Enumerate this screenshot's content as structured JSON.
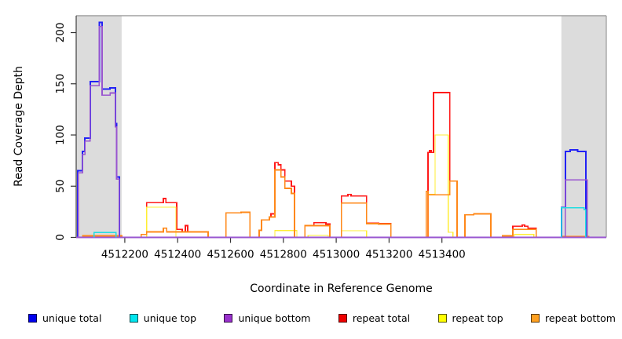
{
  "chart_data": {
    "type": "line",
    "subtype": "step-coverage",
    "title": "",
    "xlabel": "Coordinate in Reference Genome",
    "ylabel": "Read Coverage Depth",
    "x_range": [
      4512016,
      4514022
    ],
    "y_range": [
      0,
      216.5
    ],
    "x_ticks": [
      4512200,
      4512400,
      4512600,
      4512800,
      4513000,
      4513200,
      4513400
    ],
    "y_ticks": [
      0,
      50,
      100,
      150,
      200
    ],
    "grid": false,
    "legend_position": "bottom",
    "shaded_regions": [
      {
        "x0": 4512016,
        "x1": 4512188,
        "color": "#dcdcdc"
      },
      {
        "x0": 4513852,
        "x1": 4514022,
        "color": "#dcdcdc"
      }
    ],
    "legend": [
      {
        "label": "unique total",
        "color": "#0000ee"
      },
      {
        "label": "unique top",
        "color": "#00e5ee"
      },
      {
        "label": "unique bottom",
        "color": "#9932cc"
      },
      {
        "label": "repeat total",
        "color": "#ee0000"
      },
      {
        "label": "repeat top",
        "color": "#ffff00"
      },
      {
        "label": "repeat bottom",
        "color": "#ffa020"
      }
    ],
    "series": [
      {
        "name": "repeat_total",
        "label": "repeat total",
        "color": "#ff1a1a",
        "width": 1.7,
        "segments": [
          [
            [
              4512262,
              3
            ],
            [
              4512283,
              34
            ],
            [
              4512346,
              38
            ],
            [
              4512355,
              34
            ],
            [
              4512396,
              8
            ],
            [
              4512417,
              5.5
            ],
            [
              4512429,
              11.5
            ],
            [
              4512438,
              5.5
            ],
            [
              4512515,
              0
            ]
          ],
          [
            [
              4512583,
              24
            ],
            [
              4512640,
              24.5
            ],
            [
              4512673,
              0
            ]
          ],
          [
            [
              4512708,
              7
            ],
            [
              4512717,
              17
            ],
            [
              4512747,
              20
            ],
            [
              4512753,
              23
            ],
            [
              4512768,
              73
            ],
            [
              4512780,
              71
            ],
            [
              4512791,
              66
            ],
            [
              4512806,
              55
            ],
            [
              4512830,
              50
            ],
            [
              4512842,
              0
            ]
          ],
          [
            [
              4512881,
              11.5
            ],
            [
              4512916,
              14.5
            ],
            [
              4512961,
              13
            ],
            [
              4512976,
              0
            ]
          ],
          [
            [
              4513020,
              40.5
            ],
            [
              4513044,
              42
            ],
            [
              4513056,
              40.5
            ],
            [
              4513115,
              14
            ],
            [
              4513160,
              13.5
            ],
            [
              4513207,
              0
            ]
          ],
          [
            [
              4513347,
              83
            ],
            [
              4513353,
              85
            ],
            [
              4513359,
              83
            ],
            [
              4513368,
              141.5
            ],
            [
              4513430,
              55
            ],
            [
              4513457,
              0
            ]
          ],
          [
            [
              4513487,
              22
            ],
            [
              4513520,
              23
            ],
            [
              4513585,
              0
            ]
          ],
          [
            [
              4513629,
              1.5
            ],
            [
              4513668,
              11
            ],
            [
              4513704,
              12
            ],
            [
              4513713,
              11
            ],
            [
              4513725,
              9
            ],
            [
              4513757,
              0
            ]
          ]
        ]
      },
      {
        "name": "repeat_top",
        "label": "repeat top",
        "color": "#ffee33",
        "width": 1.3,
        "segments": [
          [
            [
              4512283,
              29.5
            ],
            [
              4512393,
              0
            ]
          ],
          [
            [
              4512768,
              6.8
            ],
            [
              4512851,
              0
            ]
          ],
          [
            [
              4512893,
              2
            ],
            [
              4512970,
              0
            ]
          ],
          [
            [
              4513020,
              6.5
            ],
            [
              4513115,
              0
            ]
          ],
          [
            [
              4513347,
              42
            ],
            [
              4513374,
              100
            ],
            [
              4513424,
              5
            ],
            [
              4513442,
              0
            ]
          ],
          [
            [
              4513674,
              3
            ],
            [
              4513748,
              0
            ]
          ]
        ]
      },
      {
        "name": "repeat_bottom",
        "label": "repeat bottom",
        "color": "#ff8819",
        "width": 1.7,
        "segments": [
          [
            [
              4512040,
              1.5
            ],
            [
              4512188,
              0
            ]
          ],
          [
            [
              4512262,
              3
            ],
            [
              4512283,
              5.4
            ],
            [
              4512346,
              9
            ],
            [
              4512358,
              5.4
            ],
            [
              4512515,
              0
            ]
          ],
          [
            [
              4512583,
              24
            ],
            [
              4512640,
              24.5
            ],
            [
              4512673,
              0
            ]
          ],
          [
            [
              4512708,
              7
            ],
            [
              4512717,
              17
            ],
            [
              4512747,
              20
            ],
            [
              4512768,
              66
            ],
            [
              4512791,
              59
            ],
            [
              4512806,
              48
            ],
            [
              4512830,
              43
            ],
            [
              4512842,
              0
            ]
          ],
          [
            [
              4512881,
              11.5
            ],
            [
              4512976,
              0
            ]
          ],
          [
            [
              4513020,
              33.5
            ],
            [
              4513115,
              13.5
            ],
            [
              4513160,
              13
            ],
            [
              4513207,
              0
            ]
          ],
          [
            [
              4513341,
              45
            ],
            [
              4513347,
              41.5
            ],
            [
              4513430,
              55
            ],
            [
              4513457,
              0
            ]
          ],
          [
            [
              4513487,
              22
            ],
            [
              4513520,
              23
            ],
            [
              4513585,
              0
            ]
          ],
          [
            [
              4513629,
              1.5
            ],
            [
              4513668,
              8
            ],
            [
              4513757,
              0
            ]
          ],
          [
            [
              4513852,
              1
            ],
            [
              4513956,
              0
            ]
          ]
        ]
      },
      {
        "name": "unique_total",
        "label": "unique total",
        "color": "#2222f5",
        "width": 2,
        "segments": [
          [
            [
              4512016,
              0
            ],
            [
              4514022,
              0
            ]
          ],
          [
            [
              4512022,
              65
            ],
            [
              4512040,
              84
            ],
            [
              4512049,
              97
            ],
            [
              4512069,
              152
            ],
            [
              4512103,
              210
            ],
            [
              4512114,
              145
            ],
            [
              4512144,
              146
            ],
            [
              4512164,
              111
            ],
            [
              4512169,
              59
            ],
            [
              4512179,
              0
            ]
          ],
          [
            [
              4513852,
              29
            ],
            [
              4513867,
              84
            ],
            [
              4513885,
              85.5
            ],
            [
              4513914,
              84
            ],
            [
              4513944,
              0
            ]
          ]
        ]
      },
      {
        "name": "unique_bottom",
        "label": "unique bottom",
        "color": "#9955d0",
        "width": 1.6,
        "segments": [
          [
            [
              4512016,
              0
            ],
            [
              4514022,
              0
            ]
          ],
          [
            [
              4512024,
              63
            ],
            [
              4512040,
              81
            ],
            [
              4512049,
              94
            ],
            [
              4512069,
              148
            ],
            [
              4512103,
              206
            ],
            [
              4512114,
              139
            ],
            [
              4512144,
              141
            ],
            [
              4512164,
              108
            ],
            [
              4512169,
              57
            ],
            [
              4512179,
              0
            ]
          ],
          [
            [
              4513867,
              56
            ],
            [
              4513950,
              0
            ]
          ]
        ]
      },
      {
        "name": "unique_top",
        "label": "unique top",
        "color": "#22dde0",
        "width": 1.5,
        "segments": [
          [
            [
              4512084,
              4.8
            ],
            [
              4512167,
              0
            ]
          ],
          [
            [
              4513852,
              29
            ],
            [
              4513938,
              27
            ],
            [
              4513944,
              0
            ]
          ]
        ]
      }
    ]
  },
  "layout_text": {
    "xlabel": "Coordinate in Reference Genome",
    "ylabel": "Read Coverage Depth"
  }
}
